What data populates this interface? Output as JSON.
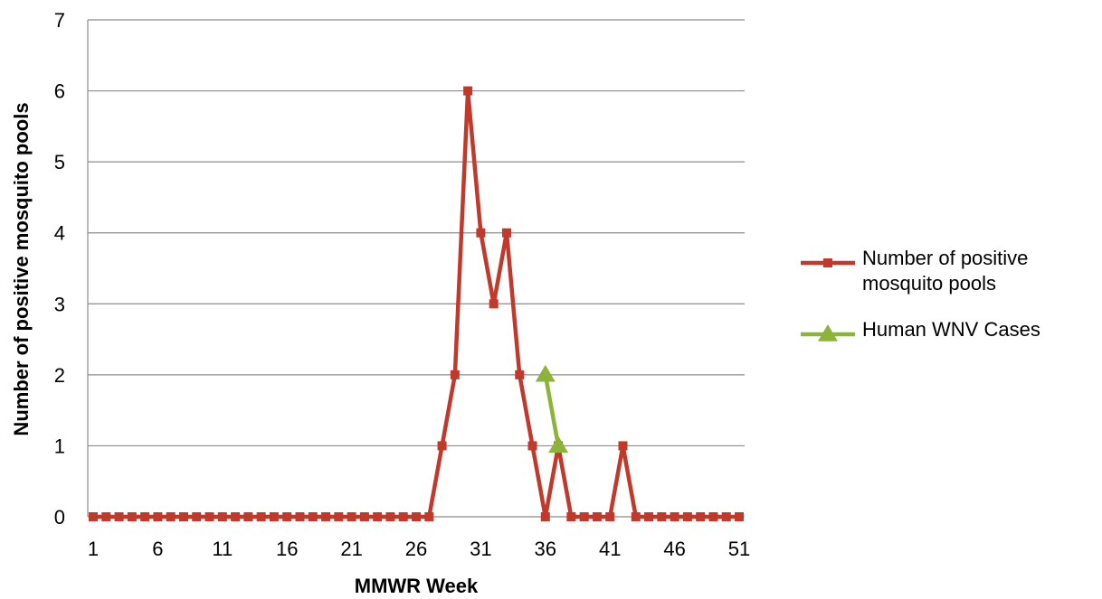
{
  "chart_data": {
    "type": "line",
    "title": "",
    "xlabel": "MMWR Week",
    "ylabel": "Number of positive mosquito pools",
    "xlim": [
      1,
      51
    ],
    "ylim": [
      0,
      7
    ],
    "xticks": [
      1,
      6,
      11,
      16,
      21,
      26,
      31,
      36,
      41,
      46,
      51
    ],
    "yticks": [
      0,
      1,
      2,
      3,
      4,
      5,
      6,
      7
    ],
    "grid": "horizontal",
    "legend_position": "right",
    "series": [
      {
        "name": "Number of positive mosquito pools",
        "legend_lines": [
          "Number of positive",
          "mosquito pools"
        ],
        "color": "#C0392B",
        "marker": "square",
        "x": [
          1,
          2,
          3,
          4,
          5,
          6,
          7,
          8,
          9,
          10,
          11,
          12,
          13,
          14,
          15,
          16,
          17,
          18,
          19,
          20,
          21,
          22,
          23,
          24,
          25,
          26,
          27,
          28,
          29,
          30,
          31,
          32,
          33,
          34,
          35,
          36,
          37,
          38,
          39,
          40,
          41,
          42,
          43,
          44,
          45,
          46,
          47,
          48,
          49,
          50,
          51
        ],
        "y": [
          0,
          0,
          0,
          0,
          0,
          0,
          0,
          0,
          0,
          0,
          0,
          0,
          0,
          0,
          0,
          0,
          0,
          0,
          0,
          0,
          0,
          0,
          0,
          0,
          0,
          0,
          0,
          1,
          2,
          6,
          4,
          3,
          4,
          2,
          1,
          0,
          1,
          0,
          0,
          0,
          0,
          1,
          0,
          0,
          0,
          0,
          0,
          0,
          0,
          0,
          0
        ]
      },
      {
        "name": "Human WNV Cases",
        "legend_lines": [
          "Human WNV Cases"
        ],
        "color": "#8DB33A",
        "marker": "triangle",
        "x": [
          36,
          37
        ],
        "y": [
          2,
          1
        ]
      }
    ]
  }
}
